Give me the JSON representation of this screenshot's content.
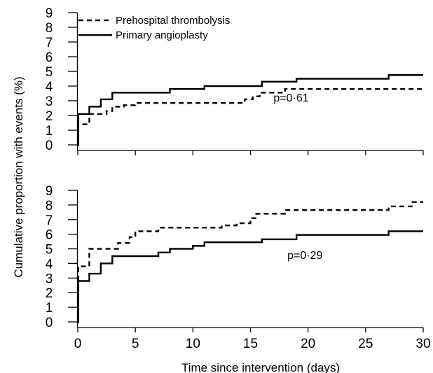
{
  "chart_data": {
    "type": "line",
    "xlabel": "Time since intervention (days)",
    "ylabel": "Cumulative proportion with events (%)",
    "legend": {
      "placement": "top-left",
      "entries": [
        {
          "name": "Prehospital thrombolysis",
          "style": "dashed"
        },
        {
          "name": "Primary angioplasty",
          "style": "solid"
        }
      ]
    },
    "panels": [
      {
        "xlim": [
          0,
          30
        ],
        "ylim": [
          0,
          9
        ],
        "xticks": [
          0,
          5,
          10,
          15,
          20,
          25,
          30
        ],
        "yticks": [
          0,
          1,
          2,
          3,
          4,
          5,
          6,
          7,
          8,
          9
        ],
        "show_x_tick_labels": false,
        "annotation": {
          "text": "p=0·61",
          "x": 17.0,
          "y": 2.95
        },
        "series": [
          {
            "name": "Prehospital thrombolysis",
            "style": "dashed",
            "color": "#000000",
            "steps": [
              [
                0,
                0
              ],
              [
                0.05,
                1.4
              ],
              [
                1,
                2.1
              ],
              [
                2.5,
                2.3
              ],
              [
                3,
                2.6
              ],
              [
                4,
                2.7
              ],
              [
                5,
                2.85
              ],
              [
                14.5,
                3.1
              ],
              [
                15.2,
                3.3
              ],
              [
                15.8,
                3.55
              ],
              [
                18,
                3.8
              ],
              [
                30,
                3.8
              ]
            ]
          },
          {
            "name": "Primary angioplasty",
            "style": "solid",
            "color": "#000000",
            "steps": [
              [
                0,
                0
              ],
              [
                0.05,
                2.1
              ],
              [
                1,
                2.6
              ],
              [
                2,
                3.1
              ],
              [
                3,
                3.55
              ],
              [
                8,
                3.8
              ],
              [
                11,
                4.0
              ],
              [
                16,
                4.3
              ],
              [
                19,
                4.5
              ],
              [
                27,
                4.75
              ],
              [
                30,
                4.75
              ]
            ]
          }
        ]
      },
      {
        "xlim": [
          0,
          30
        ],
        "ylim": [
          0,
          9
        ],
        "xticks": [
          0,
          5,
          10,
          15,
          20,
          25,
          30
        ],
        "yticks": [
          0,
          1,
          2,
          3,
          4,
          5,
          6,
          7,
          8,
          9
        ],
        "show_x_tick_labels": true,
        "annotation": {
          "text": "p=0·29",
          "x": 18.2,
          "y": 4.3
        },
        "series": [
          {
            "name": "Prehospital thrombolysis",
            "style": "dashed",
            "color": "#000000",
            "steps": [
              [
                0,
                0
              ],
              [
                0.05,
                3.8
              ],
              [
                1,
                5.0
              ],
              [
                3.5,
                5.4
              ],
              [
                4.5,
                5.8
              ],
              [
                5,
                6.2
              ],
              [
                7,
                6.45
              ],
              [
                12.5,
                6.6
              ],
              [
                13.8,
                6.75
              ],
              [
                15,
                7.1
              ],
              [
                15.5,
                7.4
              ],
              [
                18,
                7.65
              ],
              [
                27,
                7.9
              ],
              [
                29,
                8.2
              ],
              [
                30,
                8.2
              ]
            ]
          },
          {
            "name": "Primary angioplasty",
            "style": "solid",
            "color": "#000000",
            "steps": [
              [
                0,
                0
              ],
              [
                0.05,
                2.8
              ],
              [
                1,
                3.3
              ],
              [
                2,
                4.0
              ],
              [
                3,
                4.5
              ],
              [
                7,
                4.75
              ],
              [
                8,
                5.0
              ],
              [
                10,
                5.2
              ],
              [
                11,
                5.45
              ],
              [
                16,
                5.65
              ],
              [
                19,
                5.95
              ],
              [
                27,
                6.2
              ],
              [
                30,
                6.2
              ]
            ]
          }
        ]
      }
    ]
  }
}
